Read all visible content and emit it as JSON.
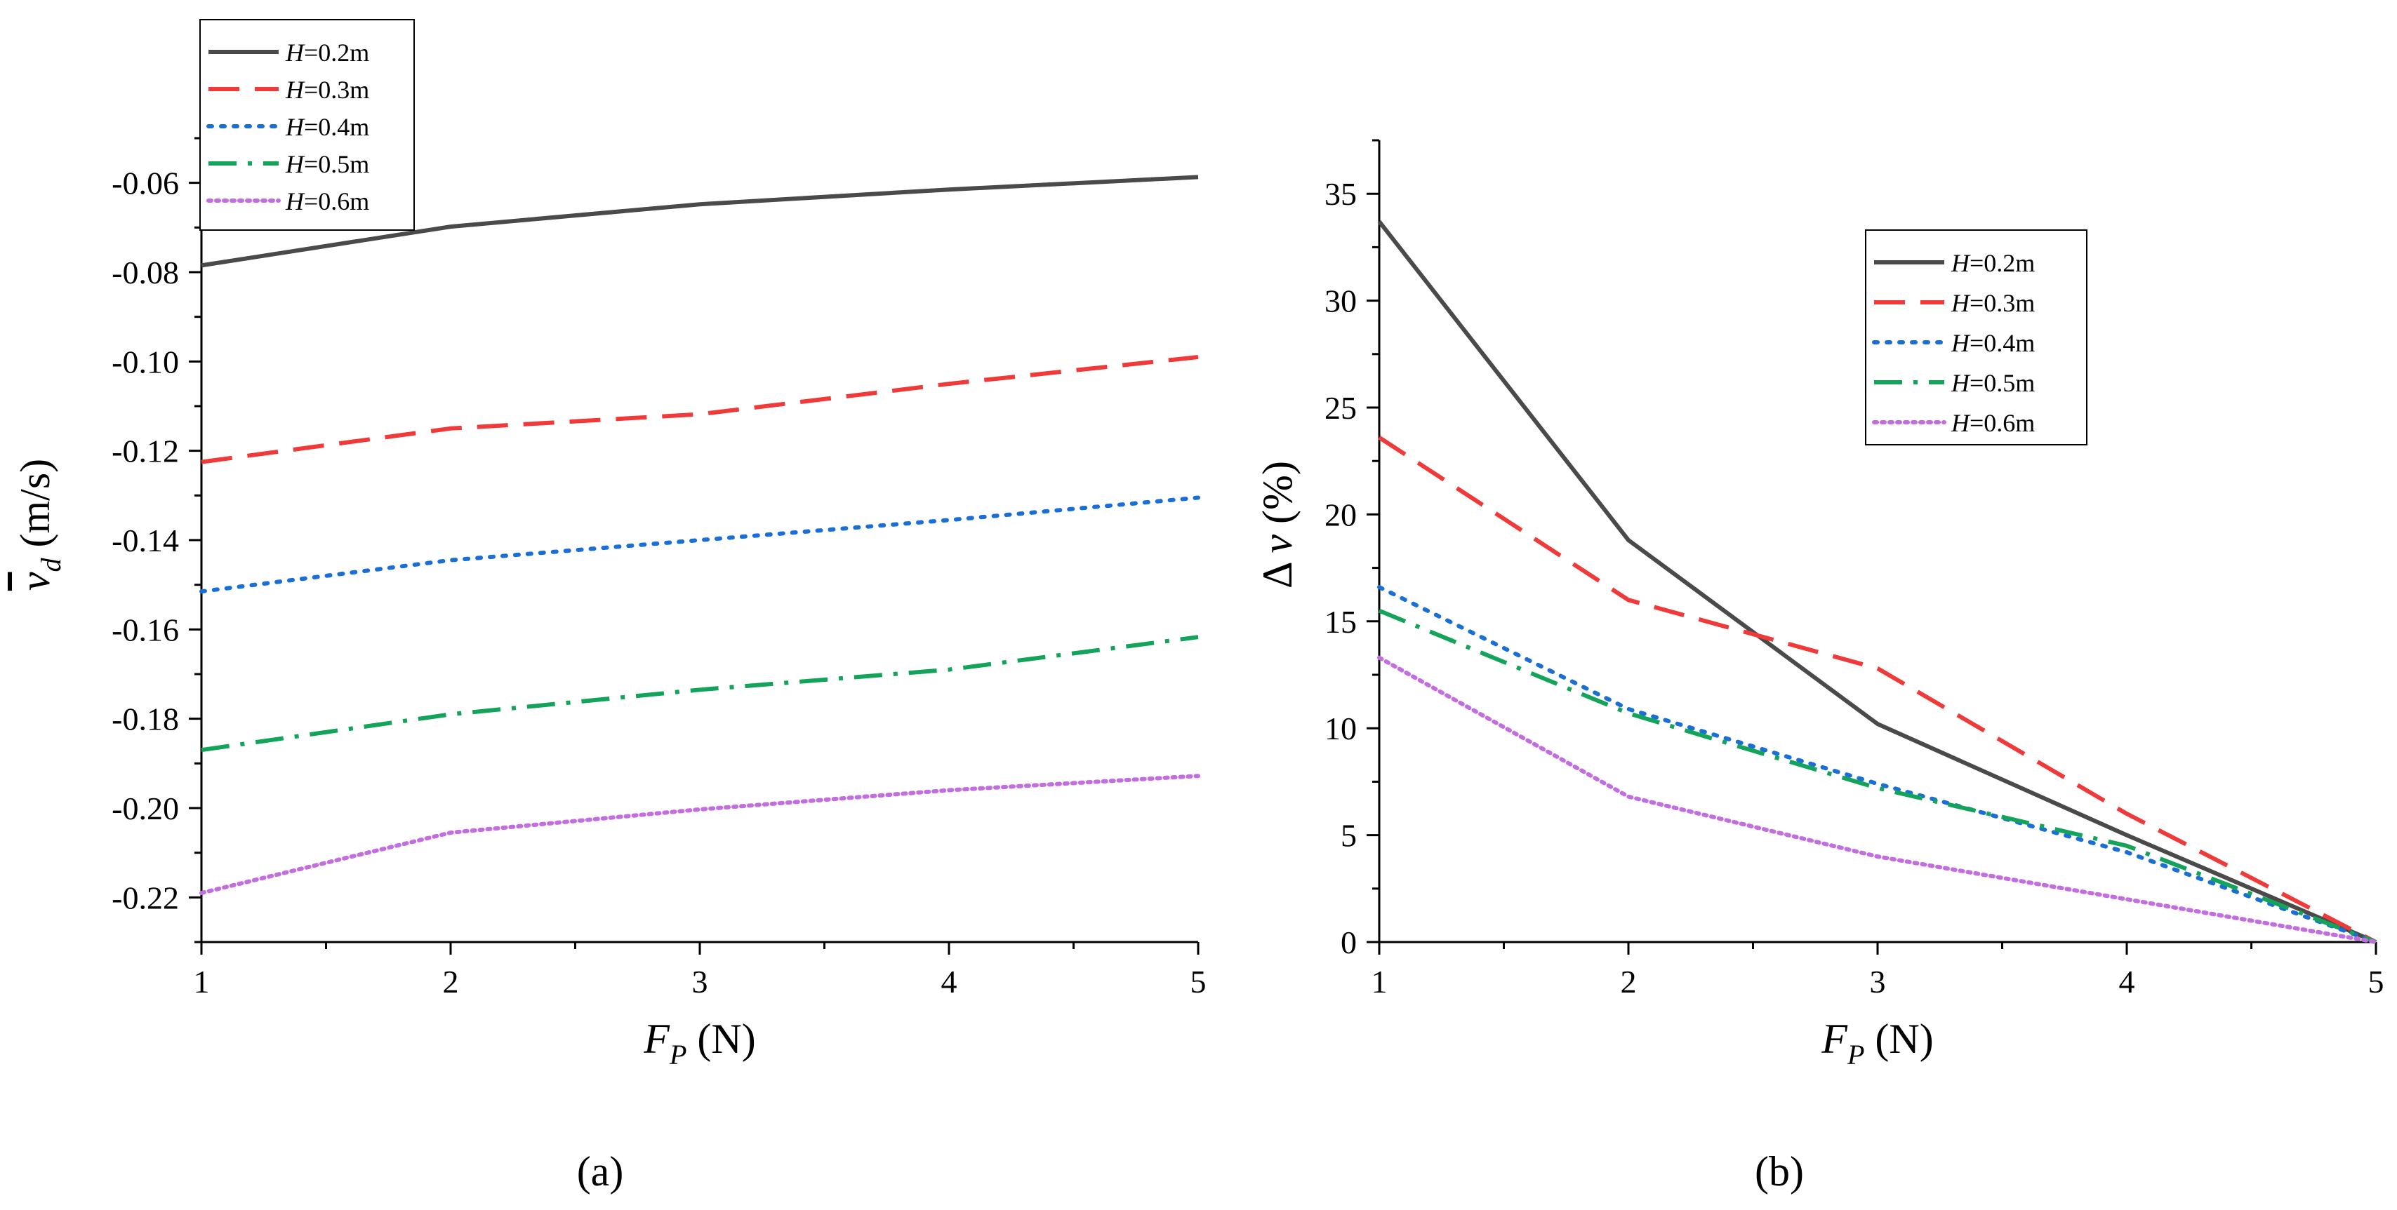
{
  "figure": {
    "panel_labels": [
      "(a)",
      "(b)"
    ]
  },
  "chart_data": [
    {
      "id": "a",
      "type": "line",
      "title": "",
      "panel_label": "(a)",
      "xlabel": {
        "var": "F",
        "sub": "P",
        "unit": "(N)"
      },
      "ylabel": {
        "var": "v",
        "sub": "d",
        "unit": "(m/s)",
        "overbar": true
      },
      "xlim": [
        1,
        5
      ],
      "ylim": [
        -0.23,
        -0.05
      ],
      "x_ticks": [
        1,
        2,
        3,
        4,
        5
      ],
      "x_tick_labels": [
        "1",
        "2",
        "3",
        "4",
        "5"
      ],
      "y_ticks": [
        -0.22,
        -0.2,
        -0.18,
        -0.16,
        -0.14,
        -0.12,
        -0.1,
        -0.08,
        -0.06
      ],
      "y_tick_labels": [
        "-0.22",
        "-0.20",
        "-0.18",
        "-0.16",
        "-0.14",
        "-0.12",
        "-0.10",
        "-0.08",
        "-0.06"
      ],
      "legend_position": "top-left",
      "x": [
        1,
        2,
        3,
        4,
        5
      ],
      "series": [
        {
          "name": "H=0.2m",
          "var": "H",
          "rest": "=0.2m",
          "color": "#4a4a4a",
          "dash": "solid",
          "values": [
            -0.0785,
            -0.0698,
            -0.0648,
            -0.0615,
            -0.0587
          ]
        },
        {
          "name": "H=0.3m",
          "var": "H",
          "rest": "=0.3m",
          "color": "#f03a3a",
          "dash": "dash",
          "values": [
            -0.1225,
            -0.115,
            -0.1118,
            -0.105,
            -0.099
          ]
        },
        {
          "name": "H=0.4m",
          "var": "H",
          "rest": "=0.4m",
          "color": "#1a6fd6",
          "dash": "dot",
          "values": [
            -0.1515,
            -0.1445,
            -0.14,
            -0.1355,
            -0.1305
          ]
        },
        {
          "name": "H=0.5m",
          "var": "H",
          "rest": "=0.5m",
          "color": "#13a35a",
          "dash": "dashdot",
          "values": [
            -0.187,
            -0.179,
            -0.1735,
            -0.169,
            -0.1617
          ]
        },
        {
          "name": "H=0.6m",
          "var": "H",
          "rest": "=0.6m",
          "color": "#c36ee0",
          "dash": "shortdot",
          "values": [
            -0.219,
            -0.2055,
            -0.2003,
            -0.196,
            -0.1928
          ]
        }
      ]
    },
    {
      "id": "b",
      "type": "line",
      "title": "",
      "panel_label": "(b)",
      "xlabel": {
        "var": "F",
        "sub": "P",
        "unit": "(N)"
      },
      "ylabel": {
        "text": "Δ",
        "var": "v",
        "unit": "(%)"
      },
      "xlim": [
        1,
        5
      ],
      "ylim": [
        0,
        37.5
      ],
      "x_ticks": [
        1,
        2,
        3,
        4,
        5
      ],
      "x_tick_labels": [
        "1",
        "2",
        "3",
        "4",
        "5"
      ],
      "y_ticks": [
        0,
        5,
        10,
        15,
        20,
        25,
        30,
        35
      ],
      "y_tick_labels": [
        "0",
        "5",
        "10",
        "15",
        "20",
        "25",
        "30",
        "35"
      ],
      "legend_position": "top-right",
      "x": [
        1,
        2,
        3,
        4,
        5
      ],
      "series": [
        {
          "name": "H=0.2m",
          "var": "H",
          "rest": "=0.2m",
          "color": "#4a4a4a",
          "dash": "solid",
          "values": [
            33.7,
            18.8,
            10.2,
            5.0,
            0
          ]
        },
        {
          "name": "H=0.3m",
          "var": "H",
          "rest": "=0.3m",
          "color": "#f03a3a",
          "dash": "dash",
          "values": [
            23.6,
            16.0,
            12.8,
            6.0,
            0
          ]
        },
        {
          "name": "H=0.4m",
          "var": "H",
          "rest": "=0.4m",
          "color": "#1a6fd6",
          "dash": "dot",
          "values": [
            16.6,
            10.9,
            7.4,
            4.2,
            0
          ]
        },
        {
          "name": "H=0.5m",
          "var": "H",
          "rest": "=0.5m",
          "color": "#13a35a",
          "dash": "dashdot",
          "values": [
            15.5,
            10.7,
            7.2,
            4.5,
            0
          ]
        },
        {
          "name": "H=0.6m",
          "var": "H",
          "rest": "=0.6m",
          "color": "#c36ee0",
          "dash": "shortdot",
          "values": [
            13.3,
            6.8,
            4.0,
            2.0,
            0
          ]
        }
      ]
    }
  ]
}
